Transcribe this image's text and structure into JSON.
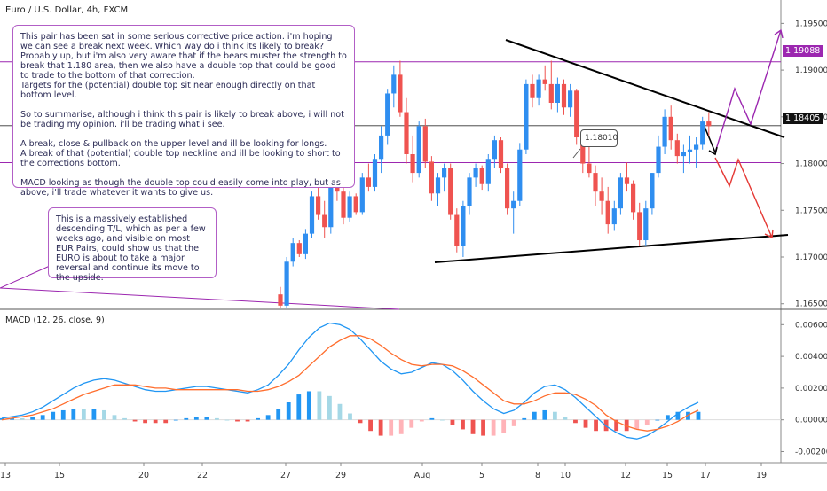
{
  "header": {
    "title": "Euro / U.S. Dollar, 4h, FXCM"
  },
  "notes": {
    "main": "This pair has been sat in some serious corrective price action. i'm hoping we can see a break next week. Which way do i think its likely to break?\nProbably up, but i'm also very aware that if the bears muster the strength to break that 1.180 area, then we also have a double top that could be good to trade to the bottom of that correction.\nTargets for the (potential) double top sit near enough directly on that bottom level.\n\nSo to summarise, although i think this pair is likely to break above, i will not be trading my opinion. i'll be trading what i see.\n\nA break, close & pullback on the upper level and ill be looking for longs.\nA break of that (potential) double top neckline and ill be looking to short to the corrections bottom.\n\nMACD looking as though the double top could easily come into play, but as above, i'll trade whatever it wants to give us.",
    "trendline": "This is a massively established descending T/L, which as per a few weeks ago, and visible on most EUR Pairs, could show us that the EURO is about to take a major reversal and continue its move to the upside.",
    "level_label": "1.18010"
  },
  "price_axis": {
    "ticks": [
      "1.19500",
      "1.19000",
      "1.18500",
      "1.18000",
      "1.17500",
      "1.17000",
      "1.16500"
    ],
    "tag_upper": "1.19088",
    "tag_current": "1.18405"
  },
  "macd": {
    "title": "MACD (12, 26, close, 9)",
    "ticks": [
      "0.00600",
      "0.00400",
      "0.00200",
      "0.00000",
      "-0.00200"
    ]
  },
  "time_axis": {
    "ticks": [
      "13",
      "15",
      "20",
      "22",
      "27",
      "29",
      "Aug",
      "5",
      "8",
      "10",
      "12",
      "15",
      "17",
      "19"
    ]
  },
  "colors": {
    "up": "#2f8ef0",
    "down": "#ef5350",
    "macd_line": "#2196f3",
    "signal_line": "#ff6d2d",
    "hist_pos_strong": "#2196f3",
    "hist_pos_weak": "#a5d8e6",
    "hist_neg_strong": "#ef5350",
    "hist_neg_weak": "#ffb3b8",
    "annotation_purple": "#9c27b0",
    "annotation_red": "#e53935"
  },
  "chart_data": [
    {
      "type": "candlestick",
      "title": "Euro / U.S. Dollar, 4h, FXCM",
      "ylim": [
        1.1645,
        1.1975
      ],
      "levels": [
        1.19088,
        1.1801
      ],
      "current_price": 1.18405,
      "candles": [
        [
          1.166,
          1.1668,
          1.1645,
          1.1648
        ],
        [
          1.1648,
          1.17,
          1.1645,
          1.1695
        ],
        [
          1.1695,
          1.172,
          1.169,
          1.1715
        ],
        [
          1.1715,
          1.1718,
          1.17,
          1.1703
        ],
        [
          1.1703,
          1.173,
          1.1698,
          1.1725
        ],
        [
          1.1725,
          1.177,
          1.172,
          1.1765
        ],
        [
          1.1765,
          1.179,
          1.174,
          1.1745
        ],
        [
          1.1745,
          1.176,
          1.172,
          1.1732
        ],
        [
          1.1732,
          1.178,
          1.1725,
          1.1775
        ],
        [
          1.1775,
          1.18,
          1.176,
          1.177
        ],
        [
          1.177,
          1.1782,
          1.1735,
          1.1742
        ],
        [
          1.1742,
          1.177,
          1.1738,
          1.1765
        ],
        [
          1.1765,
          1.1768,
          1.1745,
          1.1748
        ],
        [
          1.1748,
          1.179,
          1.1745,
          1.1785
        ],
        [
          1.1785,
          1.18,
          1.177,
          1.1775
        ],
        [
          1.1775,
          1.181,
          1.177,
          1.1805
        ],
        [
          1.1805,
          1.184,
          1.179,
          1.183
        ],
        [
          1.183,
          1.188,
          1.182,
          1.1875
        ],
        [
          1.1875,
          1.1905,
          1.186,
          1.1895
        ],
        [
          1.1895,
          1.191,
          1.185,
          1.1855
        ],
        [
          1.1855,
          1.187,
          1.18,
          1.181
        ],
        [
          1.181,
          1.183,
          1.178,
          1.179
        ],
        [
          1.179,
          1.1845,
          1.1785,
          1.184
        ],
        [
          1.184,
          1.1848,
          1.1795,
          1.1802
        ],
        [
          1.1802,
          1.1808,
          1.176,
          1.1768
        ],
        [
          1.1768,
          1.179,
          1.1755,
          1.1785
        ],
        [
          1.1785,
          1.18,
          1.177,
          1.1795
        ],
        [
          1.1795,
          1.18,
          1.174,
          1.1745
        ],
        [
          1.1745,
          1.1752,
          1.1705,
          1.1712
        ],
        [
          1.1712,
          1.176,
          1.17,
          1.1755
        ],
        [
          1.1755,
          1.179,
          1.1745,
          1.1785
        ],
        [
          1.1785,
          1.18,
          1.1775,
          1.1795
        ],
        [
          1.1795,
          1.1798,
          1.1772,
          1.1778
        ],
        [
          1.1778,
          1.181,
          1.177,
          1.1805
        ],
        [
          1.1805,
          1.183,
          1.1795,
          1.1825
        ],
        [
          1.1825,
          1.1828,
          1.179,
          1.1795
        ],
        [
          1.1795,
          1.18,
          1.1745,
          1.1752
        ],
        [
          1.1752,
          1.177,
          1.1725,
          1.176
        ],
        [
          1.176,
          1.1822,
          1.1755,
          1.1815
        ],
        [
          1.1815,
          1.189,
          1.181,
          1.1885
        ],
        [
          1.1885,
          1.1895,
          1.186,
          1.187
        ],
        [
          1.187,
          1.1895,
          1.1862,
          1.189
        ],
        [
          1.189,
          1.1905,
          1.1878,
          1.1885
        ],
        [
          1.1885,
          1.191,
          1.1858,
          1.1865
        ],
        [
          1.1865,
          1.1892,
          1.1855,
          1.1885
        ],
        [
          1.1885,
          1.189,
          1.1852,
          1.186
        ],
        [
          1.186,
          1.1885,
          1.185,
          1.1878
        ],
        [
          1.1878,
          1.188,
          1.182,
          1.1828
        ],
        [
          1.1828,
          1.1835,
          1.179,
          1.18
        ],
        [
          1.18,
          1.182,
          1.1785,
          1.179
        ],
        [
          1.179,
          1.1798,
          1.1755,
          1.177
        ],
        [
          1.177,
          1.1785,
          1.1745,
          1.176
        ],
        [
          1.176,
          1.1775,
          1.1725,
          1.1735
        ],
        [
          1.1735,
          1.176,
          1.1728,
          1.1752
        ],
        [
          1.1752,
          1.179,
          1.1745,
          1.1785
        ],
        [
          1.1785,
          1.1801,
          1.177,
          1.1778
        ],
        [
          1.1778,
          1.1782,
          1.174,
          1.1748
        ],
        [
          1.1748,
          1.1758,
          1.1712,
          1.1718
        ],
        [
          1.1718,
          1.176,
          1.1712,
          1.1752
        ],
        [
          1.1752,
          1.179,
          1.1745,
          1.179
        ],
        [
          1.179,
          1.183,
          1.1785,
          1.1818
        ],
        [
          1.1818,
          1.1858,
          1.181,
          1.185
        ],
        [
          1.185,
          1.1862,
          1.1815,
          1.1825
        ],
        [
          1.1825,
          1.1832,
          1.18,
          1.1808
        ],
        [
          1.1808,
          1.182,
          1.179,
          1.1812
        ],
        [
          1.1812,
          1.183,
          1.18,
          1.1815
        ],
        [
          1.1815,
          1.1828,
          1.1795,
          1.182
        ],
        [
          1.182,
          1.185,
          1.1815,
          1.1845
        ],
        [
          1.1845,
          1.1855,
          1.183,
          1.184
        ]
      ]
    },
    {
      "type": "macd",
      "title": "MACD (12, 26, close, 9)",
      "ylim": [
        -0.0027,
        0.0068
      ],
      "macd": [
        0.0001,
        0.0002,
        0.0003,
        0.0005,
        0.0008,
        0.0012,
        0.0016,
        0.002,
        0.0023,
        0.0025,
        0.0026,
        0.0025,
        0.0023,
        0.0021,
        0.0019,
        0.0018,
        0.0018,
        0.0019,
        0.002,
        0.0021,
        0.0021,
        0.002,
        0.0019,
        0.0018,
        0.0017,
        0.0019,
        0.0022,
        0.0028,
        0.0035,
        0.0044,
        0.0052,
        0.0058,
        0.0061,
        0.006,
        0.0057,
        0.0051,
        0.0044,
        0.0037,
        0.0032,
        0.0029,
        0.003,
        0.0033,
        0.0036,
        0.0035,
        0.0031,
        0.0025,
        0.0018,
        0.0012,
        0.0007,
        0.0004,
        0.0006,
        0.0011,
        0.0017,
        0.0021,
        0.0022,
        0.0019,
        0.0014,
        0.0008,
        0.0002,
        -0.0004,
        -0.0008,
        -0.0011,
        -0.0012,
        -0.001,
        -0.0006,
        -0.0001,
        0.0004,
        0.0008,
        0.0011
      ],
      "signal": [
        0.0,
        0.0001,
        0.0002,
        0.0003,
        0.0005,
        0.0007,
        0.001,
        0.0013,
        0.0016,
        0.0018,
        0.002,
        0.0022,
        0.0022,
        0.0022,
        0.0021,
        0.002,
        0.002,
        0.0019,
        0.0019,
        0.0019,
        0.0019,
        0.0019,
        0.0019,
        0.0019,
        0.0018,
        0.0018,
        0.0019,
        0.0021,
        0.0024,
        0.0028,
        0.0034,
        0.004,
        0.0046,
        0.005,
        0.0053,
        0.0053,
        0.0051,
        0.0047,
        0.0042,
        0.0038,
        0.0035,
        0.0034,
        0.0035,
        0.0035,
        0.0034,
        0.0031,
        0.0027,
        0.0022,
        0.0017,
        0.0012,
        0.001,
        0.001,
        0.0012,
        0.0015,
        0.0017,
        0.0017,
        0.0016,
        0.0013,
        0.0009,
        0.0003,
        -0.0001,
        -0.0004,
        -0.0006,
        -0.0007,
        -0.0006,
        -0.0004,
        -0.0001,
        0.0003,
        0.0006
      ]
    }
  ]
}
